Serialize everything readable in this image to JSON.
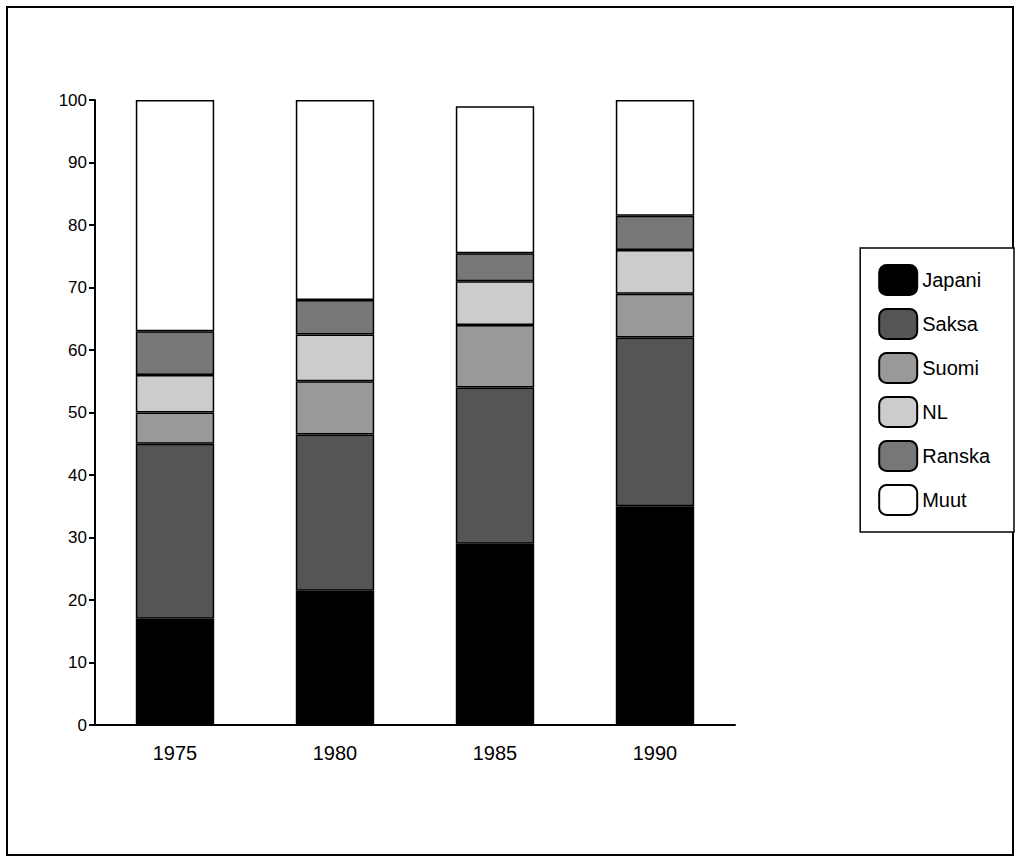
{
  "chart_data": {
    "type": "bar",
    "stacked": true,
    "categories": [
      "1975",
      "1980",
      "1985",
      "1990"
    ],
    "series": [
      {
        "name": "Japani",
        "color": "#000000",
        "values": [
          17,
          21.5,
          29,
          35
        ]
      },
      {
        "name": "Saksa",
        "color": "#555555",
        "values": [
          28,
          25,
          25,
          27
        ]
      },
      {
        "name": "Suomi",
        "color": "#999999",
        "values": [
          5,
          8.5,
          10,
          7
        ]
      },
      {
        "name": "NL",
        "color": "#cccccc",
        "values": [
          6,
          7.5,
          7,
          7
        ]
      },
      {
        "name": "Ranska",
        "color": "#777777",
        "values": [
          7,
          5.5,
          4.5,
          5.5
        ]
      },
      {
        "name": "Muut",
        "color": "#ffffff",
        "values": [
          37,
          32,
          23.5,
          18.5
        ]
      }
    ],
    "ylim": [
      0,
      100
    ],
    "yticks": [
      0,
      10,
      20,
      30,
      40,
      50,
      60,
      70,
      80,
      90,
      100
    ],
    "grid": false,
    "legend": "right"
  }
}
